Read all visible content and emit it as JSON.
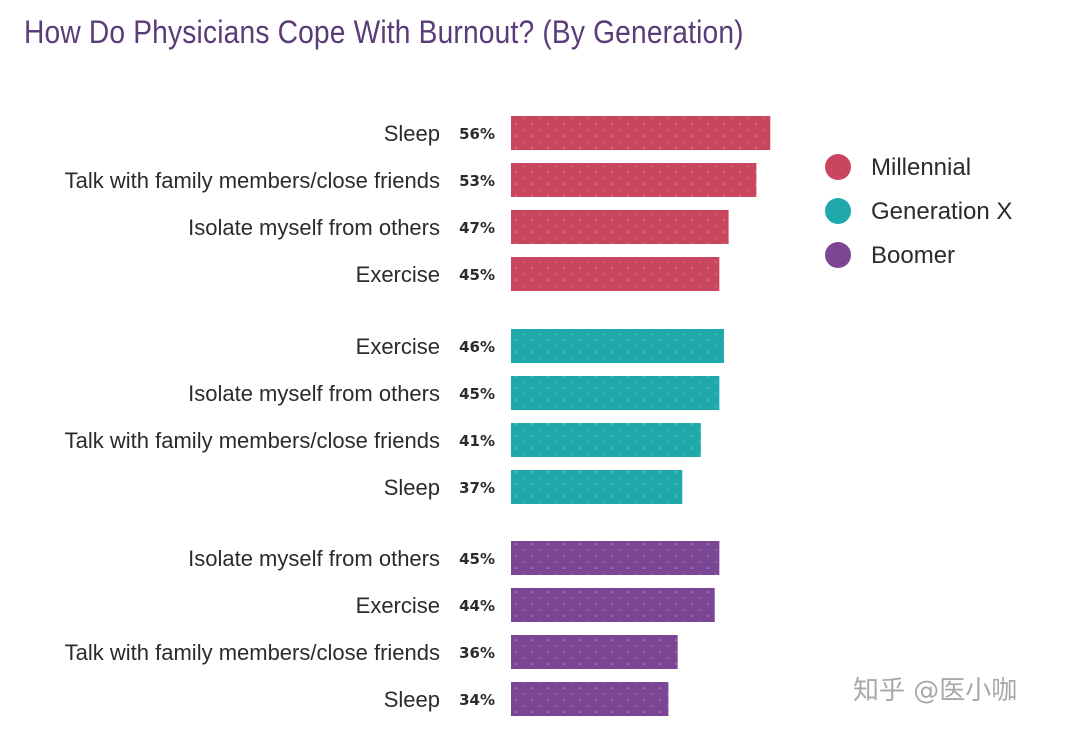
{
  "chart_data": {
    "type": "bar",
    "orientation": "horizontal",
    "title": "How Do Physicians Cope With Burnout? (By Generation)",
    "xlabel": "",
    "ylabel": "",
    "xlim": [
      0,
      60
    ],
    "grid": false,
    "legend_position": "right",
    "value_suffix": "%",
    "groups": [
      {
        "name": "Millennial",
        "color": "#c8475f",
        "categories": [
          "Sleep",
          "Talk with family members/close friends",
          "Isolate myself from others",
          "Exercise"
        ],
        "values": [
          56,
          53,
          47,
          45
        ],
        "labels": [
          "56%",
          "53%",
          "47%",
          "45%"
        ]
      },
      {
        "name": "Generation X",
        "color": "#20a9aa",
        "categories": [
          "Exercise",
          "Isolate myself from others",
          "Talk with family members/close friends",
          "Sleep"
        ],
        "values": [
          46,
          45,
          41,
          37
        ],
        "labels": [
          "46%",
          "45%",
          "41%",
          "37%"
        ]
      },
      {
        "name": "Boomer",
        "color": "#7b4694",
        "categories": [
          "Isolate myself from others",
          "Exercise",
          "Talk with family members/close friends",
          "Sleep"
        ],
        "values": [
          45,
          44,
          36,
          34
        ],
        "labels": [
          "45%",
          "44%",
          "36%",
          "34%"
        ]
      }
    ],
    "legend": [
      {
        "label": "Millennial",
        "color": "#c8475f"
      },
      {
        "label": "Generation X",
        "color": "#20a9aa"
      },
      {
        "label": "Boomer",
        "color": "#7b4694"
      }
    ]
  },
  "watermark": "知乎 @医小咖"
}
